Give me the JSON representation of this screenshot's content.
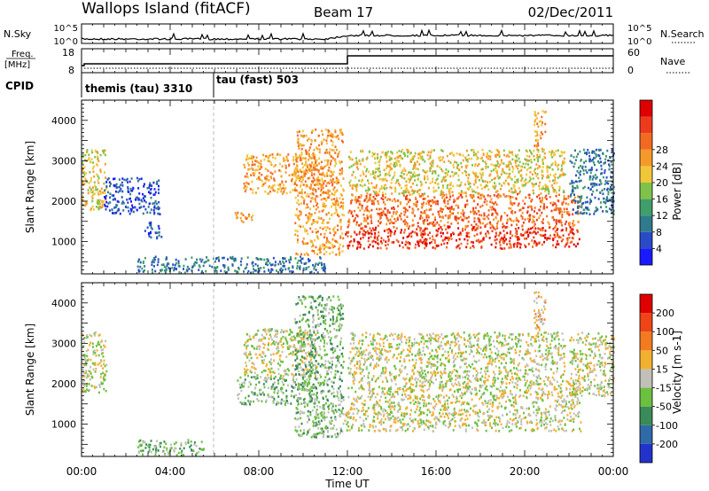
{
  "header": {
    "station": "Wallops Island (fitACF)",
    "beam": "Beam 17",
    "date": "02/Dec/2011"
  },
  "panels": {
    "nsky": {
      "label": "N.Sky",
      "ticks_left": [
        "10^5",
        "10^0"
      ],
      "right_label": "N.Search",
      "ticks_right": [
        "10^5",
        "10^0"
      ]
    },
    "freq": {
      "label_lines": [
        "Freq.",
        "[MHz]"
      ],
      "ticks_left": [
        "18",
        "8"
      ],
      "right_label": "Nave",
      "ticks_right": [
        "60",
        "0"
      ]
    },
    "cpid": {
      "label": "CPID",
      "modes": [
        {
          "name": "themis (tau) 3310",
          "start_hour": 0
        },
        {
          "name": "tau (fast) 503",
          "start_hour": 6
        }
      ]
    }
  },
  "colorbars": {
    "power": {
      "label": "Power [dB]",
      "ticks": [
        "4",
        "8",
        "12",
        "16",
        "20",
        "24",
        "28"
      ],
      "colors": [
        "#1a1aff",
        "#2a4bc8",
        "#2f7a8c",
        "#3f9e6a",
        "#7fc24a",
        "#f2c63a",
        "#f59a2a",
        "#f26a22",
        "#ee3a1c",
        "#e00000"
      ]
    },
    "velocity": {
      "label": "Velocity [m s-1]",
      "ticks": [
        "200",
        "100",
        "50",
        "15",
        "-15",
        "-50",
        "-100",
        "-200"
      ],
      "colors": [
        "#2233cc",
        "#2f6aa8",
        "#3a8a5a",
        "#6cc040",
        "#c0c0b8",
        "#f2b030",
        "#f27a20",
        "#ee4418",
        "#e00000"
      ]
    }
  },
  "chart_data": [
    {
      "type": "heatmap",
      "name": "power",
      "ylabel": "Slant Range [km]",
      "yticks": [
        "1000",
        "2000",
        "3000",
        "4000"
      ],
      "ylim": [
        200,
        4500
      ],
      "xlim": [
        0,
        24
      ],
      "regions": [
        {
          "t0": 0.0,
          "t1": 1.1,
          "r0": 1800,
          "r1": 3300,
          "level": 5
        },
        {
          "t0": 1.0,
          "t1": 3.5,
          "r0": 1700,
          "r1": 2600,
          "level": 1
        },
        {
          "t0": 2.8,
          "t1": 3.6,
          "r0": 1100,
          "r1": 1500,
          "level": 1
        },
        {
          "t0": 2.5,
          "t1": 11.0,
          "r0": 250,
          "r1": 650,
          "level": 2
        },
        {
          "t0": 6.9,
          "t1": 7.7,
          "r0": 1500,
          "r1": 1750,
          "level": 6
        },
        {
          "t0": 7.3,
          "t1": 10.6,
          "r0": 2200,
          "r1": 3200,
          "level": 6
        },
        {
          "t0": 9.6,
          "t1": 11.8,
          "r0": 700,
          "r1": 3800,
          "level": 6
        },
        {
          "t0": 11.8,
          "t1": 22.5,
          "r0": 850,
          "r1": 1400,
          "level": 8
        },
        {
          "t0": 12.0,
          "t1": 22.5,
          "r0": 1400,
          "r1": 2200,
          "level": 7
        },
        {
          "t0": 12.0,
          "t1": 21.8,
          "r0": 2200,
          "r1": 3300,
          "level": 5
        },
        {
          "t0": 20.4,
          "t1": 20.9,
          "r0": 3300,
          "r1": 4300,
          "level": 6
        },
        {
          "t0": 22.0,
          "t1": 24.0,
          "r0": 1700,
          "r1": 3300,
          "level": 2
        }
      ]
    },
    {
      "type": "heatmap",
      "name": "velocity",
      "ylabel": "Slant Range [km]",
      "yticks": [
        "1000",
        "2000",
        "3000",
        "4000"
      ],
      "ylim": [
        200,
        4500
      ],
      "xlim": [
        0,
        24
      ],
      "regions": [
        {
          "t0": 0.0,
          "t1": 1.1,
          "r0": 1800,
          "r1": 3300,
          "level": 4
        },
        {
          "t0": 2.5,
          "t1": 5.5,
          "r0": 250,
          "r1": 650,
          "level": 3
        },
        {
          "t0": 7.3,
          "t1": 10.6,
          "r0": 2200,
          "r1": 3400,
          "level": 4
        },
        {
          "t0": 7.0,
          "t1": 10.6,
          "r0": 1500,
          "r1": 2200,
          "level": 3
        },
        {
          "t0": 9.6,
          "t1": 11.8,
          "r0": 700,
          "r1": 4200,
          "level": 3
        },
        {
          "t0": 11.8,
          "t1": 22.5,
          "r0": 850,
          "r1": 1400,
          "level": 4
        },
        {
          "t0": 12.0,
          "t1": 22.5,
          "r0": 1400,
          "r1": 2200,
          "level": 4
        },
        {
          "t0": 12.0,
          "t1": 21.8,
          "r0": 2200,
          "r1": 3300,
          "level": 4
        },
        {
          "t0": 20.4,
          "t1": 20.9,
          "r0": 3300,
          "r1": 4300,
          "level": 5
        },
        {
          "t0": 22.0,
          "t1": 24.0,
          "r0": 1700,
          "r1": 3300,
          "level": 4
        }
      ]
    }
  ],
  "xaxis": {
    "label": "Time UT",
    "ticks": [
      "00:00",
      "04:00",
      "08:00",
      "12:00",
      "16:00",
      "20:00",
      "00:00"
    ]
  }
}
